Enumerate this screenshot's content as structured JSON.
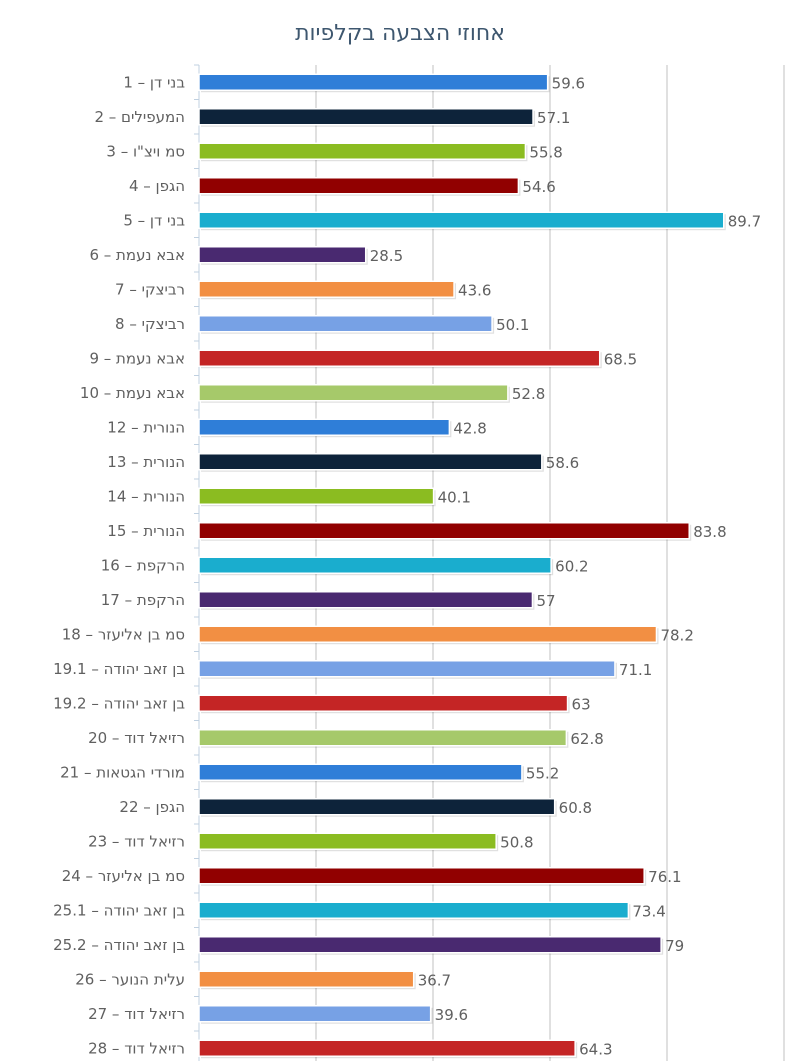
{
  "chart_data": {
    "type": "bar",
    "orientation": "horizontal",
    "title": "אחוזי הצבעה בקלפיות",
    "xlabel": "",
    "ylabel": "",
    "xlim": [
      0,
      100
    ],
    "grid": true,
    "gridline_step": 20,
    "categories": [
      "בני דן – 1",
      "המעפילים – 2",
      "סמ ויצ\"ו – 3",
      "הגפן – 4",
      "בני דן – 5",
      "אבא נעמת – 6",
      "רביצקי – 7",
      "רביצקי – 8",
      "אבא נעמת – 9",
      "אבא נעמת – 10",
      "הנורית – 12",
      "הנורית – 13",
      "הנורית – 14",
      "הנורית – 15",
      "הרקפת – 16",
      "הרקפת – 17",
      "סמ בן אליעזר – 18",
      "בן זאב יהודה – 19.1",
      "בן זאב יהודה – 19.2",
      "רזיאל דוד – 20",
      "מורדי הגטאות – 21",
      "הגפן – 22",
      "רזיאל דוד – 23",
      "סמ בן אליעזר – 24",
      "בן זאב יהודה – 25.1",
      "בן זאב יהודה – 25.2",
      "עלית הנוער – 26",
      "רזיאל דוד – 27",
      "רזיאל דוד – 28"
    ],
    "values": [
      59.6,
      57.1,
      55.8,
      54.6,
      89.7,
      28.5,
      43.6,
      50.1,
      68.5,
      52.8,
      42.8,
      58.6,
      40.1,
      83.8,
      60.2,
      57,
      78.2,
      71.1,
      63,
      62.8,
      55.2,
      60.8,
      50.8,
      76.1,
      73.4,
      79,
      36.7,
      39.6,
      64.3
    ],
    "colors": [
      "#2F7ED8",
      "#0D233A",
      "#8BBC21",
      "#910000",
      "#1AADCE",
      "#492970",
      "#F28F43",
      "#77A1E5",
      "#C42525",
      "#A6C96A"
    ]
  }
}
